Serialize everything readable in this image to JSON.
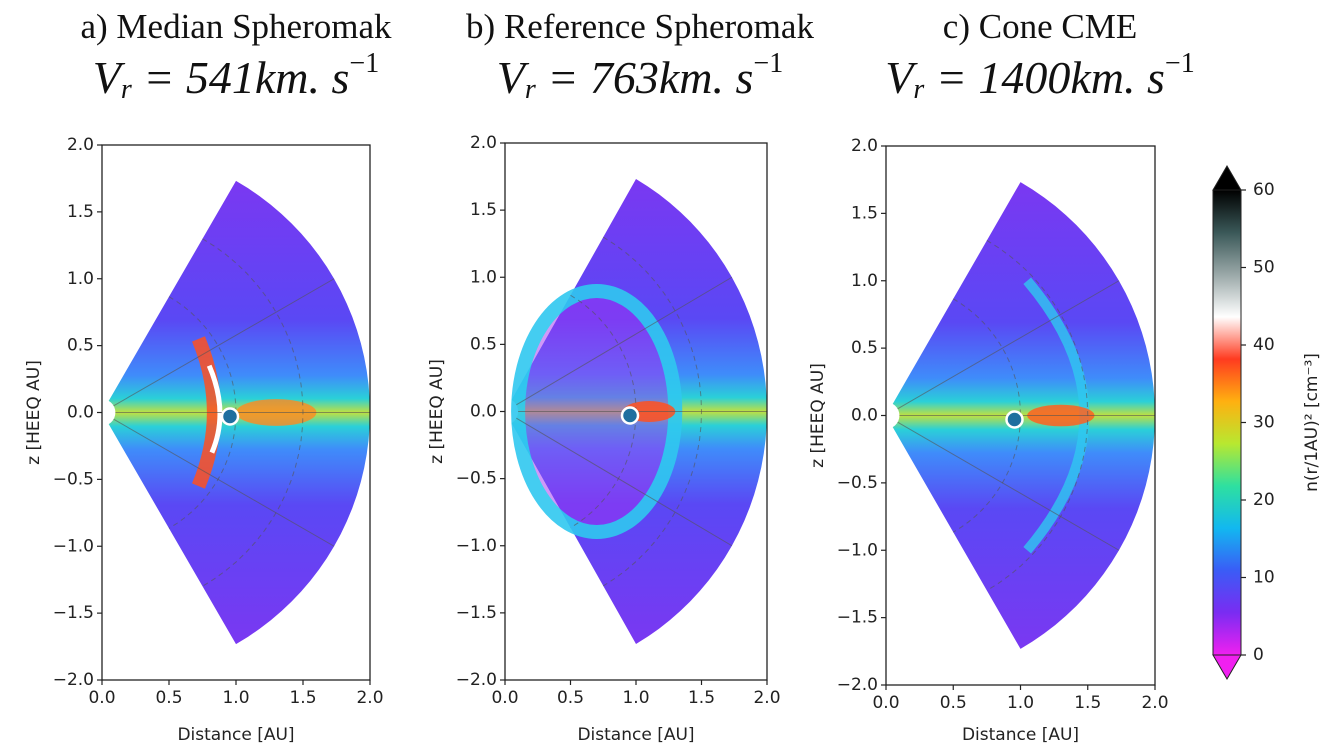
{
  "chart_data": [
    {
      "type": "heatmap",
      "title": "a) Median Spheromak",
      "subtitle": {
        "symbol": "V",
        "subscript": "r",
        "text": " = 541km. s",
        "superscript": "−1"
      },
      "xlabel": "Distance [AU]",
      "ylabel": "z [HEEQ AU]",
      "xlim": [
        0,
        2
      ],
      "ylim": [
        -2,
        2
      ],
      "xticks": [
        {
          "value": 0,
          "label": "0.0"
        },
        {
          "value": 0.5,
          "label": "0.5"
        },
        {
          "value": 1,
          "label": "1.0"
        },
        {
          "value": 1.5,
          "label": "1.5"
        },
        {
          "value": 2,
          "label": "2.0"
        }
      ],
      "yticks": [
        {
          "value": -2,
          "label": "−2.0"
        },
        {
          "value": -1.5,
          "label": "−1.5"
        },
        {
          "value": -1,
          "label": "−1.0"
        },
        {
          "value": -0.5,
          "label": "−0.5"
        },
        {
          "value": 0,
          "label": "0.0"
        },
        {
          "value": 0.5,
          "label": "0.5"
        },
        {
          "value": 1,
          "label": "1.0"
        },
        {
          "value": 1.5,
          "label": "1.5"
        },
        {
          "value": 2,
          "label": "2.0"
        }
      ],
      "grid": true
    },
    {
      "type": "heatmap",
      "title": "b) Reference Spheromak",
      "subtitle": {
        "symbol": "V",
        "subscript": "r",
        "text": " = 763km. s",
        "superscript": "−1"
      },
      "xlabel": "Distance [AU]",
      "ylabel": "z [HEEQ AU]",
      "xlim": [
        0,
        2
      ],
      "ylim": [
        -2,
        2
      ],
      "xticks": [
        {
          "value": 0,
          "label": "0.0"
        },
        {
          "value": 0.5,
          "label": "0.5"
        },
        {
          "value": 1,
          "label": "1.0"
        },
        {
          "value": 1.5,
          "label": "1.5"
        },
        {
          "value": 2,
          "label": "2.0"
        }
      ],
      "yticks": [
        {
          "value": -2,
          "label": "−2.0"
        },
        {
          "value": -1.5,
          "label": "−1.5"
        },
        {
          "value": -1,
          "label": "−1.0"
        },
        {
          "value": -0.5,
          "label": "−0.5"
        },
        {
          "value": 0,
          "label": "0.0"
        },
        {
          "value": 0.5,
          "label": "0.5"
        },
        {
          "value": 1,
          "label": "1.0"
        },
        {
          "value": 1.5,
          "label": "1.5"
        },
        {
          "value": 2,
          "label": "2.0"
        }
      ],
      "grid": true
    },
    {
      "type": "heatmap",
      "title": "c) Cone CME",
      "subtitle": {
        "symbol": "V",
        "subscript": "r",
        "text": " = 1400km. s",
        "superscript": "−1"
      },
      "xlabel": "Distance [AU]",
      "ylabel": "z [HEEQ AU]",
      "xlim": [
        0,
        2
      ],
      "ylim": [
        -2,
        2
      ],
      "xticks": [
        {
          "value": 0,
          "label": "0.0"
        },
        {
          "value": 0.5,
          "label": "0.5"
        },
        {
          "value": 1,
          "label": "1.0"
        },
        {
          "value": 1.5,
          "label": "1.5"
        },
        {
          "value": 2,
          "label": "2.0"
        }
      ],
      "yticks": [
        {
          "value": -2,
          "label": "−2.0"
        },
        {
          "value": -1.5,
          "label": "−1.5"
        },
        {
          "value": -1,
          "label": "−1.0"
        },
        {
          "value": -0.5,
          "label": "−0.5"
        },
        {
          "value": 0,
          "label": "0.0"
        },
        {
          "value": 0.5,
          "label": "0.5"
        },
        {
          "value": 1,
          "label": "1.0"
        },
        {
          "value": 1.5,
          "label": "1.5"
        },
        {
          "value": 2,
          "label": "2.0"
        }
      ],
      "grid": true
    },
    {
      "type": "colorbar",
      "label": "n(r/1AU)²  [cm⁻³]",
      "ylim": [
        0,
        60
      ],
      "yticks": [
        0,
        10,
        20,
        30,
        40,
        50,
        60
      ],
      "colors": [
        "#f020f0",
        "#7a2cf2",
        "#3a5cf6",
        "#12b8f0",
        "#2ee0a0",
        "#b8e830",
        "#ffb010",
        "#ff3b20",
        "#ffffff",
        "#9aa8a8",
        "#3a5858",
        "#000000"
      ]
    }
  ]
}
